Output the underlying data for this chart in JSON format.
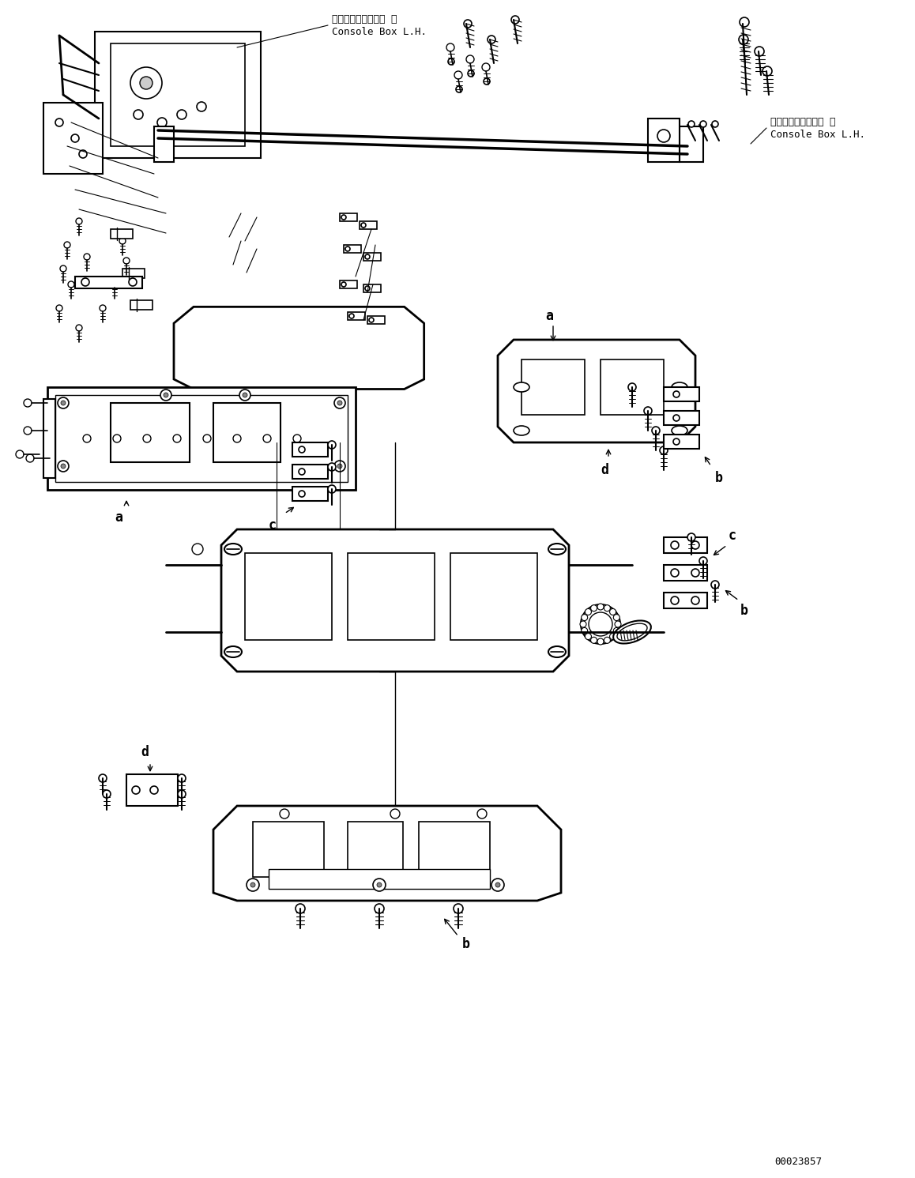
{
  "title": "",
  "background_color": "#ffffff",
  "figure_width": 11.58,
  "figure_height": 14.91,
  "dpi": 100,
  "labels": {
    "console_box_top": [
      "コンソールボックス 左",
      "Console Box L.H."
    ],
    "console_box_right": [
      "コンソールボックス 左",
      "Console Box L.H."
    ],
    "a_bottom_left": "a",
    "b_right": "b",
    "c_center": "c",
    "d_bottom": "d",
    "a_right_center": "a",
    "b_bottom": "b",
    "c_right": "c",
    "d_left_bottom": "d",
    "part_number": "00023857"
  },
  "text_color": "#000000",
  "line_color": "#000000",
  "part_color": "#333333"
}
